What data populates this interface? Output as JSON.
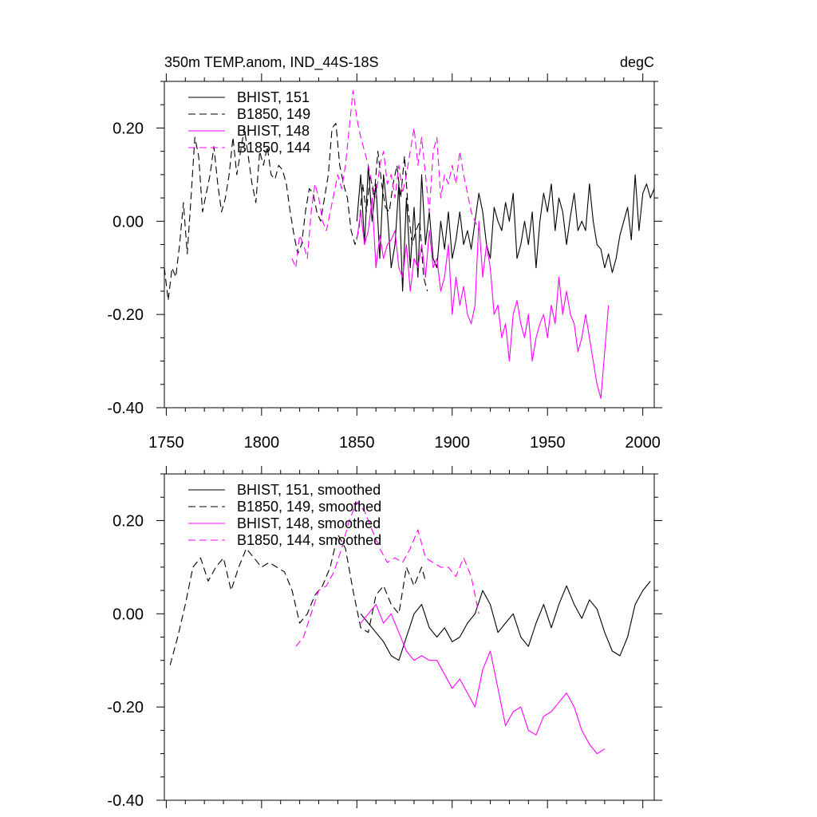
{
  "header": {
    "title": "350m TEMP.anom, IND_44S-18S",
    "units": "degC"
  },
  "colors": {
    "bhist": "#000000",
    "b1850": "#000000",
    "bhist2": "#ff00ff",
    "b1850_2": "#ff00ff",
    "axis": "#000000"
  },
  "chart_data": [
    {
      "type": "line",
      "title": "350m TEMP.anom, IND_44S-18S",
      "units": "degC",
      "xlabel": "",
      "ylabel": "",
      "xlim": [
        1749,
        2006
      ],
      "ylim": [
        -0.4,
        0.3
      ],
      "xticks": [
        1750,
        1800,
        1850,
        1900,
        1950,
        2000
      ],
      "yticks": [
        -0.4,
        -0.2,
        0.0,
        0.2
      ],
      "xtick_labels": [
        "1750",
        "1800",
        "1850",
        "1900",
        "1950",
        "2000"
      ],
      "ytick_labels": [
        "-0.40",
        "-0.20",
        "0.00",
        "0.20"
      ],
      "grid": false,
      "legend_position": "top-left",
      "series": [
        {
          "name": "BHIST, 151",
          "color": "#000000",
          "dash": "solid",
          "x": [
            1850,
            1852,
            1854,
            1856,
            1858,
            1860,
            1862,
            1864,
            1866,
            1868,
            1870,
            1872,
            1874,
            1876,
            1878,
            1880,
            1882,
            1884,
            1886,
            1888,
            1890,
            1892,
            1894,
            1896,
            1898,
            1900,
            1902,
            1904,
            1906,
            1908,
            1910,
            1912,
            1914,
            1916,
            1918,
            1920,
            1922,
            1924,
            1926,
            1928,
            1930,
            1932,
            1934,
            1936,
            1938,
            1940,
            1942,
            1944,
            1946,
            1948,
            1950,
            1952,
            1954,
            1956,
            1958,
            1960,
            1962,
            1964,
            1966,
            1968,
            1970,
            1972,
            1974,
            1976,
            1978,
            1980,
            1982,
            1984,
            1986,
            1988,
            1990,
            1992,
            1994,
            1996,
            1998,
            2000,
            2002,
            2004,
            2006
          ],
          "values": [
            0.0,
            0.1,
            -0.05,
            0.12,
            0.0,
            0.08,
            -0.08,
            0.1,
            0.02,
            -0.1,
            -0.05,
            0.08,
            -0.15,
            0.05,
            -0.1,
            0.03,
            -0.12,
            0.1,
            -0.05,
            0.02,
            -0.08,
            -0.1,
            0.0,
            -0.06,
            0.02,
            -0.08,
            -0.04,
            0.02,
            -0.05,
            -0.02,
            -0.06,
            0.0,
            0.06,
            0.02,
            -0.05,
            -0.08,
            0.03,
            0.0,
            -0.02,
            0.04,
            0.0,
            0.06,
            -0.08,
            -0.05,
            0.0,
            -0.05,
            0.02,
            -0.1,
            0.0,
            0.06,
            0.02,
            0.08,
            -0.02,
            0.05,
            0.02,
            -0.05,
            0.01,
            0.06,
            -0.02,
            0.0,
            -0.02,
            0.08,
            0.0,
            -0.05,
            -0.06,
            -0.1,
            -0.07,
            -0.11,
            -0.08,
            -0.03,
            0.0,
            0.03,
            -0.04,
            0.1,
            -0.02,
            0.06,
            0.08,
            0.05,
            0.07
          ]
        },
        {
          "name": "B1850, 149",
          "color": "#000000",
          "dash": "dashed",
          "x": [
            1749,
            1751,
            1753,
            1755,
            1757,
            1759,
            1761,
            1763,
            1765,
            1767,
            1769,
            1771,
            1773,
            1775,
            1777,
            1779,
            1781,
            1783,
            1785,
            1787,
            1789,
            1791,
            1793,
            1795,
            1797,
            1799,
            1801,
            1803,
            1805,
            1807,
            1809,
            1811,
            1813,
            1815,
            1817,
            1819,
            1821,
            1823,
            1825,
            1827,
            1829,
            1831,
            1833,
            1835,
            1837,
            1839,
            1841,
            1843,
            1845,
            1847,
            1849,
            1851,
            1853,
            1855,
            1857,
            1859,
            1861,
            1863,
            1865,
            1867,
            1869,
            1871,
            1873,
            1875,
            1877,
            1879,
            1881,
            1883,
            1885,
            1887
          ],
          "values": [
            -0.1,
            -0.17,
            -0.1,
            -0.12,
            -0.05,
            0.04,
            -0.07,
            0.05,
            0.18,
            0.14,
            0.02,
            0.06,
            0.1,
            0.16,
            0.08,
            0.02,
            0.05,
            0.1,
            0.18,
            0.1,
            0.15,
            0.2,
            0.14,
            0.08,
            0.04,
            0.15,
            0.12,
            0.16,
            0.1,
            0.09,
            0.12,
            0.11,
            0.08,
            0.02,
            -0.03,
            -0.07,
            -0.05,
            0.02,
            0.07,
            0.06,
            0.02,
            0.0,
            0.05,
            0.1,
            0.2,
            0.21,
            0.12,
            0.08,
            0.05,
            -0.02,
            -0.05,
            -0.02,
            0.08,
            0.02,
            0.1,
            0.05,
            0.15,
            0.08,
            0.03,
            0.02,
            0.08,
            0.12,
            0.05,
            0.14,
            0.02,
            -0.05,
            -0.02,
            0.0,
            -0.12,
            -0.15
          ]
        },
        {
          "name": "BHIST, 148",
          "color": "#ff00ff",
          "dash": "solid",
          "x": [
            1850,
            1852,
            1854,
            1856,
            1858,
            1860,
            1862,
            1864,
            1866,
            1868,
            1870,
            1872,
            1874,
            1876,
            1878,
            1880,
            1882,
            1884,
            1886,
            1888,
            1890,
            1892,
            1894,
            1896,
            1898,
            1900,
            1902,
            1904,
            1906,
            1908,
            1910,
            1912,
            1914,
            1916,
            1918,
            1920,
            1922,
            1924,
            1926,
            1928,
            1930,
            1932,
            1934,
            1936,
            1938,
            1940,
            1942,
            1944,
            1946,
            1948,
            1950,
            1952,
            1954,
            1956,
            1958,
            1960,
            1962,
            1964,
            1966,
            1968,
            1970,
            1972,
            1974,
            1976,
            1978,
            1980,
            1982
          ],
          "values": [
            -0.04,
            0.02,
            -0.05,
            -0.02,
            0.05,
            -0.1,
            -0.03,
            -0.08,
            -0.05,
            -0.04,
            -0.02,
            -0.1,
            -0.12,
            -0.05,
            -0.15,
            -0.08,
            -0.1,
            -0.05,
            -0.12,
            -0.02,
            -0.1,
            -0.08,
            -0.15,
            -0.12,
            -0.05,
            -0.2,
            -0.12,
            -0.18,
            -0.14,
            -0.2,
            -0.22,
            -0.18,
            0.0,
            -0.12,
            -0.05,
            -0.1,
            -0.2,
            -0.18,
            -0.25,
            -0.22,
            -0.3,
            -0.2,
            -0.17,
            -0.22,
            -0.25,
            -0.2,
            -0.3,
            -0.25,
            -0.22,
            -0.2,
            -0.25,
            -0.18,
            -0.22,
            -0.12,
            -0.2,
            -0.15,
            -0.2,
            -0.22,
            -0.28,
            -0.25,
            -0.2,
            -0.25,
            -0.3,
            -0.35,
            -0.38,
            -0.28,
            -0.18
          ]
        },
        {
          "name": "B1850, 144",
          "color": "#ff00ff",
          "dash": "dashed",
          "x": [
            1816,
            1818,
            1820,
            1822,
            1824,
            1826,
            1828,
            1830,
            1832,
            1834,
            1836,
            1838,
            1840,
            1842,
            1844,
            1846,
            1848,
            1850,
            1852,
            1854,
            1856,
            1858,
            1860,
            1862,
            1864,
            1866,
            1868,
            1870,
            1872,
            1874,
            1876,
            1878,
            1880,
            1882,
            1884,
            1886,
            1888,
            1890,
            1892,
            1894,
            1896,
            1898,
            1900,
            1902,
            1904,
            1906,
            1908,
            1910,
            1912,
            1914
          ],
          "values": [
            -0.08,
            -0.1,
            -0.03,
            -0.05,
            -0.08,
            0.02,
            0.08,
            0.05,
            0.0,
            -0.02,
            0.02,
            0.06,
            0.1,
            0.07,
            0.12,
            0.2,
            0.28,
            0.22,
            0.18,
            0.15,
            0.12,
            0.08,
            0.05,
            0.12,
            0.15,
            0.08,
            0.1,
            0.05,
            0.12,
            0.06,
            0.1,
            0.15,
            0.2,
            0.12,
            0.18,
            0.1,
            0.02,
            0.15,
            0.18,
            0.05,
            0.1,
            0.08,
            0.12,
            0.08,
            0.15,
            0.1,
            0.06,
            0.02,
            0.0,
            -0.02
          ]
        }
      ]
    },
    {
      "type": "line",
      "title": "",
      "xlabel": "",
      "ylabel": "",
      "xlim": [
        1749,
        2006
      ],
      "ylim": [
        -0.4,
        0.3
      ],
      "xticks": [
        1750,
        1800,
        1850,
        1900,
        1950,
        2000
      ],
      "yticks": [
        -0.4,
        -0.2,
        0.0,
        0.2
      ],
      "ytick_labels": [
        "-0.40",
        "-0.20",
        "0.00",
        "0.20"
      ],
      "grid": false,
      "legend_position": "top-left",
      "series": [
        {
          "name": "BHIST, 151, smoothed",
          "color": "#000000",
          "dash": "solid",
          "x": [
            1852,
            1856,
            1860,
            1864,
            1868,
            1872,
            1876,
            1880,
            1884,
            1888,
            1892,
            1896,
            1900,
            1904,
            1908,
            1912,
            1916,
            1920,
            1924,
            1928,
            1932,
            1936,
            1940,
            1944,
            1948,
            1952,
            1956,
            1960,
            1964,
            1968,
            1972,
            1976,
            1980,
            1984,
            1988,
            1992,
            1996,
            2000,
            2004
          ],
          "values": [
            0.0,
            -0.02,
            -0.04,
            -0.06,
            -0.09,
            -0.1,
            -0.05,
            0.0,
            0.02,
            -0.03,
            -0.05,
            -0.03,
            -0.06,
            -0.05,
            -0.02,
            0.0,
            0.05,
            0.02,
            -0.04,
            -0.02,
            0.0,
            -0.05,
            -0.07,
            -0.02,
            0.02,
            -0.03,
            0.02,
            0.06,
            0.02,
            -0.01,
            0.03,
            0.01,
            -0.04,
            -0.08,
            -0.09,
            -0.05,
            0.02,
            0.05,
            0.07
          ]
        },
        {
          "name": "B1850, 149, smoothed",
          "color": "#000000",
          "dash": "dashed",
          "x": [
            1752,
            1756,
            1760,
            1764,
            1768,
            1772,
            1776,
            1780,
            1784,
            1788,
            1792,
            1796,
            1800,
            1804,
            1808,
            1812,
            1816,
            1820,
            1824,
            1828,
            1832,
            1836,
            1840,
            1844,
            1848,
            1852,
            1856,
            1860,
            1864,
            1868,
            1872,
            1876,
            1880,
            1884,
            1886
          ],
          "values": [
            -0.11,
            -0.05,
            0.02,
            0.1,
            0.12,
            0.07,
            0.1,
            0.12,
            0.05,
            0.1,
            0.14,
            0.12,
            0.1,
            0.11,
            0.1,
            0.09,
            0.05,
            -0.02,
            0.0,
            0.04,
            0.06,
            0.1,
            0.17,
            0.14,
            0.05,
            -0.03,
            -0.04,
            0.04,
            0.06,
            0.02,
            0.0,
            0.1,
            0.06,
            0.1,
            0.07
          ]
        },
        {
          "name": "BHIST, 148, smoothed",
          "color": "#ff00ff",
          "dash": "solid",
          "x": [
            1852,
            1856,
            1860,
            1864,
            1868,
            1872,
            1876,
            1880,
            1884,
            1888,
            1892,
            1896,
            1900,
            1904,
            1908,
            1912,
            1916,
            1920,
            1924,
            1928,
            1932,
            1936,
            1940,
            1944,
            1948,
            1952,
            1956,
            1960,
            1964,
            1968,
            1972,
            1976,
            1980
          ],
          "values": [
            -0.02,
            0.0,
            0.02,
            -0.02,
            0.0,
            -0.04,
            -0.08,
            -0.1,
            -0.09,
            -0.1,
            -0.1,
            -0.13,
            -0.16,
            -0.14,
            -0.17,
            -0.2,
            -0.12,
            -0.08,
            -0.16,
            -0.24,
            -0.21,
            -0.2,
            -0.25,
            -0.26,
            -0.22,
            -0.21,
            -0.19,
            -0.17,
            -0.2,
            -0.25,
            -0.28,
            -0.3,
            -0.29
          ]
        },
        {
          "name": "B1850, 144, smoothed",
          "color": "#ff00ff",
          "dash": "dashed",
          "x": [
            1818,
            1822,
            1826,
            1830,
            1834,
            1838,
            1842,
            1846,
            1850,
            1854,
            1858,
            1862,
            1866,
            1870,
            1874,
            1878,
            1882,
            1886,
            1890,
            1894,
            1898,
            1902,
            1906,
            1910,
            1914
          ],
          "values": [
            -0.07,
            -0.05,
            0.0,
            0.05,
            0.06,
            0.09,
            0.14,
            0.2,
            0.24,
            0.22,
            0.18,
            0.14,
            0.11,
            0.12,
            0.11,
            0.14,
            0.18,
            0.12,
            0.11,
            0.1,
            0.1,
            0.08,
            0.12,
            0.08,
            0.0
          ]
        }
      ]
    }
  ]
}
